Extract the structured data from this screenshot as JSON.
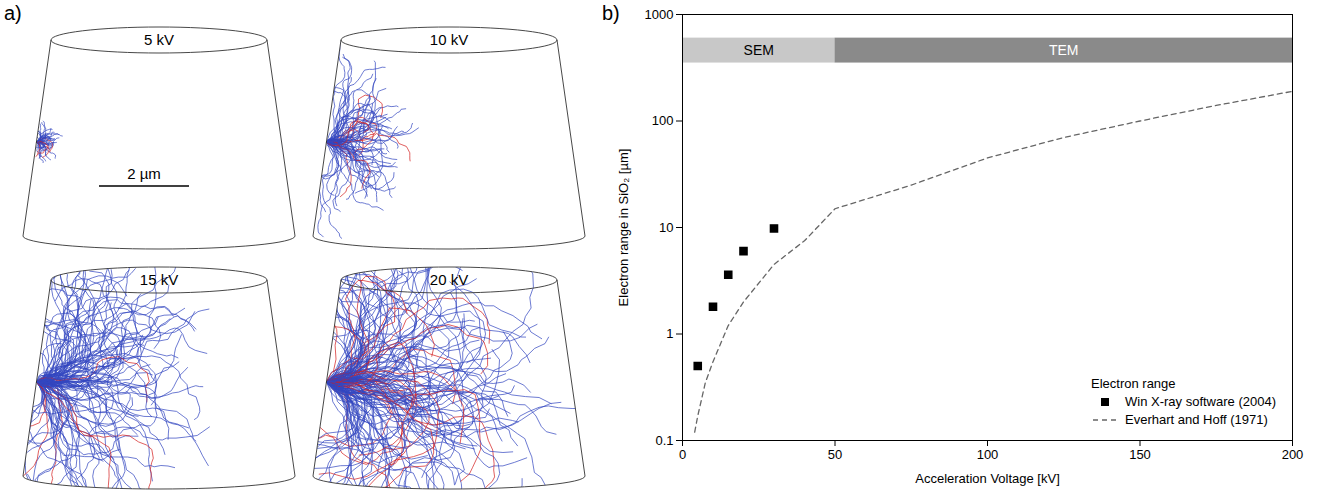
{
  "panel_a": {
    "label": "a)",
    "titles": [
      "5 kV",
      "10 kV",
      "15 kV",
      "20 kV"
    ],
    "scale_bar": "2 µm"
  },
  "chart_data": {
    "label": "b)",
    "type": "scatter",
    "xlabel": "Acceleration Voltage [kV]",
    "ylabel": "Electron range in SiO₂ [µm]",
    "xlim": [
      0,
      200
    ],
    "xticks": [
      0,
      50,
      100,
      150,
      200
    ],
    "ylim": [
      0.1,
      1000
    ],
    "yticks": [
      0.1,
      1,
      10,
      100,
      1000
    ],
    "log": "y",
    "legend": "bottom-right",
    "legend_title": "Electron range",
    "regions": [
      {
        "label": "SEM",
        "x0": 0,
        "x1": 50,
        "y0": 350,
        "y1": 600,
        "color": "#c8c8c8"
      },
      {
        "label": "TEM",
        "x0": 50,
        "x1": 200,
        "y0": 350,
        "y1": 600,
        "color": "#8a8a8a"
      }
    ],
    "series": [
      {
        "name": "Win X-ray software (2004)",
        "type": "scatter",
        "marker": "square",
        "color": "#000000",
        "x": [
          5,
          10,
          15,
          20,
          30
        ],
        "values": [
          0.5,
          1.8,
          3.6,
          6,
          9.8
        ]
      },
      {
        "name": "Everhart and Hoff (1971)",
        "type": "line",
        "line_style": "dashed",
        "color": "#666666",
        "x": [
          4,
          5,
          7.5,
          10,
          15,
          20,
          30,
          40,
          50,
          75,
          100,
          125,
          150,
          175,
          200
        ],
        "values": [
          0.12,
          0.17,
          0.35,
          0.55,
          1.2,
          2,
          4.5,
          7.5,
          15,
          25,
          45,
          70,
          100,
          140,
          190
        ]
      }
    ]
  }
}
